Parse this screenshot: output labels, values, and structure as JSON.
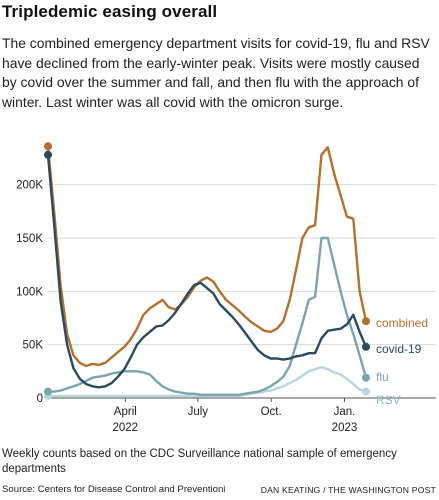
{
  "header": {
    "title": "Tripledemic easing overall",
    "subtitle": "The combined emergency department visits for covid-19, flu and RSV have declined from the early-winter peak. Visits were mostly caused by covid over the summer and fall, and then flu with the approach of winter. Last winter was all covid with the omicron surge."
  },
  "footer": {
    "note": "Weekly counts based on the CDC Surveillance national sample of emergency departments",
    "source": "Source: Centers for Disease Control and Preventioni",
    "credit": "DAN KEATING / THE WASHINGTON POST"
  },
  "chart_data": {
    "type": "line",
    "x_unit": "week",
    "x_start": "2021-12-25",
    "x_end": "2023-01-28",
    "ylim": [
      0,
      240000
    ],
    "grid": true,
    "y_ticks": [
      {
        "value": 0,
        "label": "0"
      },
      {
        "value": 50000,
        "label": "50K"
      },
      {
        "value": 100000,
        "label": "100K"
      },
      {
        "value": 150000,
        "label": "150K"
      },
      {
        "value": 200000,
        "label": "200K"
      }
    ],
    "x_ticks": [
      {
        "date": "2022-04-01",
        "label": "April",
        "sublabel": "2022"
      },
      {
        "date": "2022-07-01",
        "label": "July",
        "sublabel": ""
      },
      {
        "date": "2022-10-01",
        "label": "Oct.",
        "sublabel": ""
      },
      {
        "date": "2023-01-01",
        "label": "Jan.",
        "sublabel": "2023"
      }
    ],
    "series": [
      {
        "name": "combined",
        "color": "#b5702e",
        "values": [
          236000,
          172000,
          105000,
          60000,
          40000,
          33000,
          30000,
          32000,
          31000,
          33000,
          38000,
          43000,
          48000,
          55000,
          65000,
          78000,
          84000,
          88000,
          92000,
          85000,
          83000,
          88000,
          95000,
          104000,
          110000,
          113000,
          109000,
          100000,
          92000,
          87000,
          82000,
          76000,
          71000,
          67000,
          63000,
          62000,
          65000,
          72000,
          92000,
          120000,
          150000,
          160000,
          162000,
          228000,
          235000,
          210000,
          190000,
          170000,
          168000,
          100000,
          72000
        ]
      },
      {
        "name": "covid-19",
        "color": "#2b4a60",
        "values": [
          228000,
          160000,
          90000,
          50000,
          28000,
          18000,
          13000,
          11000,
          10000,
          11000,
          14000,
          20000,
          27000,
          38000,
          50000,
          57000,
          62000,
          67000,
          68000,
          73000,
          80000,
          89000,
          98000,
          106000,
          108000,
          103000,
          98000,
          88000,
          82000,
          76000,
          69000,
          61000,
          53000,
          45000,
          40000,
          37000,
          37000,
          36000,
          37000,
          39000,
          40000,
          42000,
          42000,
          56000,
          63000,
          64000,
          65000,
          69000,
          78000,
          62000,
          48000
        ]
      },
      {
        "name": "flu",
        "color": "#7aa5ad",
        "values": [
          6000,
          6000,
          7000,
          9000,
          11000,
          13000,
          16000,
          19000,
          20000,
          21000,
          23000,
          24000,
          25000,
          25000,
          25000,
          24000,
          22000,
          16000,
          11000,
          8000,
          6000,
          5000,
          4000,
          4000,
          3000,
          3000,
          3000,
          3000,
          3000,
          3000,
          3000,
          4000,
          5000,
          6000,
          8000,
          11000,
          15000,
          20000,
          30000,
          50000,
          70000,
          92000,
          95000,
          150000,
          150000,
          125000,
          100000,
          78000,
          60000,
          40000,
          19000
        ]
      },
      {
        "name": "RSV",
        "color": "#b7d7dd",
        "values": [
          2000,
          2000,
          2000,
          2000,
          2000,
          2000,
          2000,
          2000,
          2000,
          2000,
          2000,
          2000,
          2000,
          2000,
          2000,
          2000,
          2000,
          2000,
          2000,
          2000,
          2000,
          2000,
          2000,
          2000,
          2000,
          2000,
          2000,
          2000,
          2000,
          2000,
          2000,
          3000,
          4000,
          5000,
          6000,
          7000,
          9000,
          11000,
          14000,
          17000,
          21000,
          25000,
          27000,
          29000,
          27000,
          24000,
          22000,
          18000,
          13000,
          8000,
          6000
        ]
      }
    ]
  }
}
